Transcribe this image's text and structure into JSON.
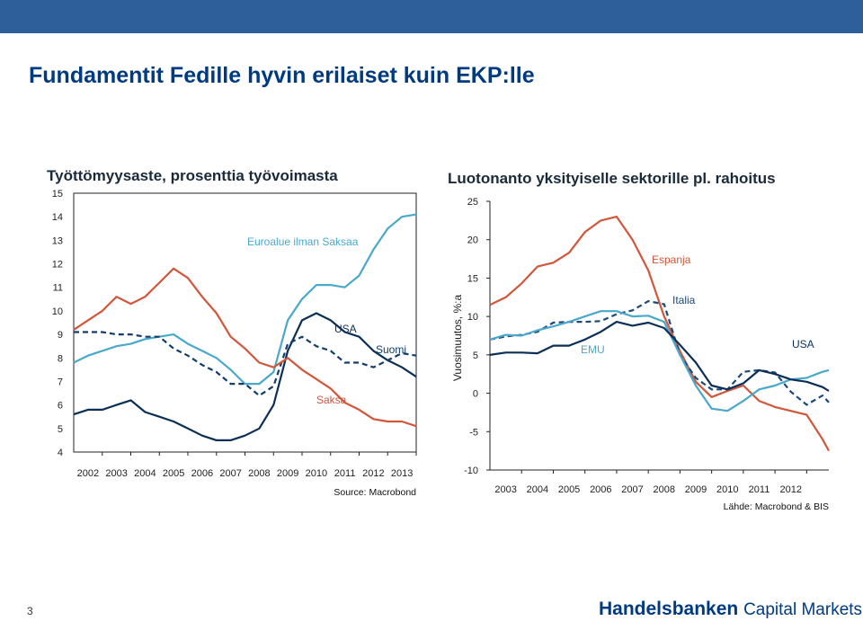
{
  "slide": {
    "title": "Fundamentit Fedille hyvin erilaiset kuin EKP:lle",
    "page_number": "3",
    "logo_bold": "Handelsbanken",
    "logo_rest": "Capital Markets",
    "top_bar_color": "#2f5f9a"
  },
  "chart_data": [
    {
      "type": "line",
      "title": "Työttömyysaste, prosenttia työvoimasta",
      "ylabel": "",
      "xlabel": "",
      "ylim": [
        4,
        15
      ],
      "xlim": [
        2001.5,
        2013.5
      ],
      "yticks": [
        "4",
        "5",
        "6",
        "7",
        "8",
        "9",
        "10",
        "11",
        "12",
        "13",
        "14",
        "15"
      ],
      "xticks": [
        "2002",
        "2003",
        "2004",
        "2005",
        "2006",
        "2007",
        "2008",
        "2009",
        "2010",
        "2011",
        "2012",
        "2013"
      ],
      "source": "Source: Macrobond",
      "grid": false,
      "series": [
        {
          "name": "Euroalue ilman Saksaa",
          "color": "#4aa8cc",
          "dash": false,
          "x": [
            2001.5,
            2002,
            2002.5,
            2003,
            2003.5,
            2004,
            2004.5,
            2005,
            2005.5,
            2006,
            2006.5,
            2007,
            2007.5,
            2008,
            2008.5,
            2009,
            2009.5,
            2010,
            2010.5,
            2011,
            2011.5,
            2012,
            2012.5,
            2013,
            2013.5
          ],
          "y": [
            7.8,
            8.1,
            8.3,
            8.5,
            8.6,
            8.8,
            8.9,
            9.0,
            8.6,
            8.3,
            8.0,
            7.5,
            6.9,
            6.9,
            7.4,
            9.6,
            10.5,
            11.1,
            11.1,
            11.0,
            11.5,
            12.6,
            13.5,
            14.0,
            14.1
          ]
        },
        {
          "name": "USA",
          "color": "#0b2f57",
          "dash": false,
          "x": [
            2001.5,
            2002,
            2002.5,
            2003,
            2003.5,
            2004,
            2004.5,
            2005,
            2005.5,
            2006,
            2006.5,
            2007,
            2007.5,
            2008,
            2008.5,
            2009,
            2009.5,
            2010,
            2010.5,
            2011,
            2011.5,
            2012,
            2012.5,
            2013,
            2013.5
          ],
          "y": [
            5.6,
            5.8,
            5.8,
            6.0,
            6.2,
            5.7,
            5.5,
            5.3,
            5.0,
            4.7,
            4.5,
            4.5,
            4.7,
            5.0,
            6.0,
            8.3,
            9.6,
            9.9,
            9.6,
            9.1,
            8.9,
            8.3,
            7.9,
            7.6,
            7.2
          ]
        },
        {
          "name": "Suomi",
          "color": "#123d6e",
          "dash": true,
          "x": [
            2001.5,
            2002,
            2002.5,
            2003,
            2003.5,
            2004,
            2004.5,
            2005,
            2005.5,
            2006,
            2006.5,
            2007,
            2007.5,
            2008,
            2008.5,
            2009,
            2009.5,
            2010,
            2010.5,
            2011,
            2011.5,
            2012,
            2012.5,
            2013,
            2013.5
          ],
          "y": [
            9.1,
            9.1,
            9.1,
            9.0,
            9.0,
            8.9,
            8.9,
            8.4,
            8.1,
            7.7,
            7.4,
            6.9,
            6.9,
            6.4,
            6.8,
            8.6,
            8.9,
            8.5,
            8.3,
            7.8,
            7.8,
            7.6,
            7.9,
            8.2,
            8.1
          ]
        },
        {
          "name": "Saksa",
          "color": "#d2563a",
          "dash": false,
          "x": [
            2001.5,
            2002,
            2002.5,
            2003,
            2003.5,
            2004,
            2004.5,
            2005,
            2005.5,
            2006,
            2006.5,
            2007,
            2007.5,
            2008,
            2008.5,
            2009,
            2009.5,
            2010,
            2010.5,
            2011,
            2011.5,
            2012,
            2012.5,
            2013,
            2013.5
          ],
          "y": [
            9.2,
            9.6,
            10.0,
            10.6,
            10.3,
            10.6,
            11.2,
            11.8,
            11.4,
            10.6,
            9.9,
            8.9,
            8.4,
            7.8,
            7.6,
            8.0,
            7.5,
            7.1,
            6.7,
            6.1,
            5.8,
            5.4,
            5.3,
            5.3,
            5.1
          ]
        }
      ]
    },
    {
      "type": "line",
      "title": "Luotonanto yksityiselle sektorille pl. rahoitus",
      "ylabel": "Vuosimuutos, %:a",
      "xlabel": "",
      "ylim": [
        -10,
        25
      ],
      "xlim": [
        2002.5,
        2013.2
      ],
      "yticks": [
        "-10",
        "-5",
        "0",
        "5",
        "10",
        "15",
        "20",
        "25"
      ],
      "xticks": [
        "2003",
        "2004",
        "2005",
        "2006",
        "2007",
        "2008",
        "2009",
        "2010",
        "2011",
        "2012"
      ],
      "source": "Lähde: Macrobond & BIS",
      "grid": false,
      "series": [
        {
          "name": "Espanja",
          "color": "#d2563a",
          "dash": false,
          "x": [
            2002.5,
            2003,
            2003.5,
            2004,
            2004.5,
            2005,
            2005.5,
            2006,
            2006.5,
            2007,
            2007.5,
            2008,
            2008.5,
            2009,
            2009.5,
            2010,
            2010.5,
            2011,
            2011.5,
            2012,
            2012.5,
            2013,
            2013.2
          ],
          "y": [
            11.5,
            12.5,
            14.3,
            16.5,
            17.0,
            18.3,
            21.0,
            22.5,
            23.0,
            20.0,
            16.0,
            10.0,
            5.5,
            1.5,
            -0.5,
            0.3,
            1.0,
            -1.0,
            -1.8,
            -2.3,
            -2.8,
            -6.0,
            -7.5
          ]
        },
        {
          "name": "Italia",
          "color": "#1b4a7a",
          "dash": true,
          "x": [
            2002.5,
            2003,
            2003.5,
            2004,
            2004.5,
            2005,
            2005.5,
            2006,
            2006.5,
            2007,
            2007.5,
            2008,
            2008.5,
            2009,
            2009.5,
            2010,
            2010.5,
            2011,
            2011.5,
            2012,
            2012.5,
            2013,
            2013.2
          ],
          "y": [
            7.0,
            7.4,
            7.6,
            8.0,
            9.2,
            9.3,
            9.3,
            9.4,
            10.3,
            10.8,
            12.0,
            11.6,
            5.0,
            2.0,
            0.5,
            0.5,
            2.8,
            3.0,
            2.7,
            0.2,
            -1.5,
            -0.3,
            -1.2
          ]
        },
        {
          "name": "EMU",
          "color": "#4aa8cc",
          "dash": false,
          "x": [
            2002.5,
            2003,
            2003.5,
            2004,
            2004.5,
            2005,
            2005.5,
            2006,
            2006.5,
            2007,
            2007.5,
            2008,
            2008.5,
            2009,
            2009.5,
            2010,
            2010.5,
            2011,
            2011.5,
            2012,
            2012.5,
            2013,
            2013.2
          ],
          "y": [
            7.0,
            7.6,
            7.5,
            8.2,
            8.7,
            9.3,
            10.0,
            10.7,
            10.7,
            10.0,
            10.1,
            9.3,
            5.0,
            1.0,
            -2.0,
            -2.3,
            -1.0,
            0.5,
            1.0,
            1.8,
            2.0,
            2.8,
            3.0
          ]
        },
        {
          "name": "USA",
          "color": "#0b2f57",
          "dash": false,
          "x": [
            2002.5,
            2003,
            2003.5,
            2004,
            2004.5,
            2005,
            2005.5,
            2006,
            2006.5,
            2007,
            2007.5,
            2008,
            2008.5,
            2009,
            2009.5,
            2010,
            2010.5,
            2011,
            2011.5,
            2012,
            2012.5,
            2013,
            2013.2
          ],
          "y": [
            5.0,
            5.3,
            5.3,
            5.2,
            6.2,
            6.2,
            7.0,
            8.0,
            9.3,
            8.8,
            9.2,
            8.5,
            6.3,
            4.0,
            1.0,
            0.5,
            1.3,
            3.0,
            2.5,
            1.8,
            1.5,
            0.8,
            0.3
          ]
        }
      ]
    }
  ]
}
